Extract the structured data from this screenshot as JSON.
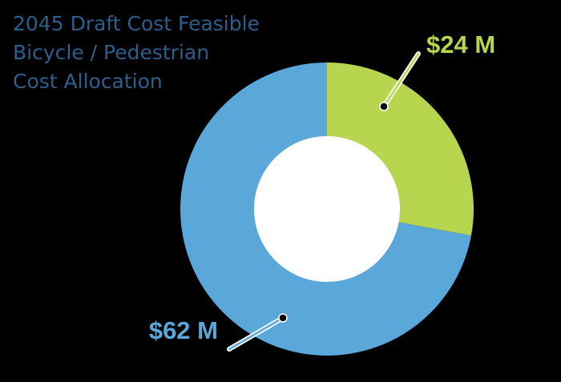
{
  "chart_data": {
    "type": "pie",
    "donut": true,
    "title_lines": [
      "2045 Draft Cost Feasible",
      "Bicycle / Pedestrian",
      "Cost Allocation"
    ],
    "slices": [
      {
        "label": "$24 M",
        "value": 24,
        "color": "#B8D54F"
      },
      {
        "label": "$62 M",
        "value": 62,
        "color": "#5AA8DA"
      }
    ],
    "colors": {
      "title": "#2E5E8C",
      "background": "#000000",
      "center": "#FFFFFF"
    }
  }
}
